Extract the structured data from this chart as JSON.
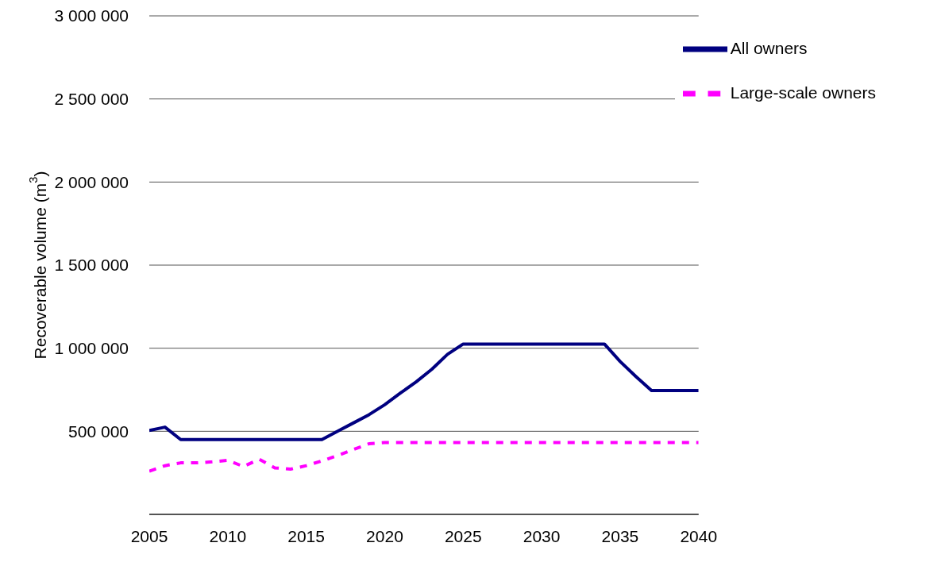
{
  "chart_data": {
    "type": "line",
    "ylabel": "Recoverable volume (m$^{3}$)",
    "x": [
      2005,
      2006,
      2007,
      2008,
      2009,
      2010,
      2011,
      2012,
      2013,
      2014,
      2015,
      2016,
      2017,
      2018,
      2019,
      2020,
      2021,
      2022,
      2023,
      2024,
      2025,
      2026,
      2027,
      2028,
      2029,
      2030,
      2031,
      2032,
      2033,
      2034,
      2035,
      2036,
      2037,
      2038,
      2039,
      2040
    ],
    "series": [
      {
        "name": "All owners",
        "color": "#000080",
        "line_style": "solid",
        "values": [
          505000,
          525000,
          450000,
          450000,
          450000,
          450000,
          450000,
          450000,
          450000,
          450000,
          450000,
          450000,
          500000,
          550000,
          600000,
          660000,
          730000,
          797000,
          873000,
          963000,
          1025000,
          1025000,
          1025000,
          1025000,
          1025000,
          1025000,
          1025000,
          1025000,
          1025000,
          1025000,
          920000,
          830000,
          745000,
          745000,
          745000,
          745000
        ]
      },
      {
        "name": "Large-scale owners",
        "color": "#ff00ff",
        "line_style": "dashed",
        "values": [
          260000,
          293000,
          310000,
          310000,
          316000,
          325000,
          288000,
          332000,
          280000,
          272000,
          293000,
          322000,
          354000,
          390000,
          425000,
          432000,
          432000,
          432000,
          432000,
          432000,
          432000,
          432000,
          432000,
          432000,
          432000,
          432000,
          432000,
          432000,
          432000,
          432000,
          432000,
          432000,
          432000,
          432000,
          432000,
          432000
        ]
      }
    ],
    "xlim": [
      2005,
      2040
    ],
    "xticks": [
      2005,
      2010,
      2015,
      2020,
      2025,
      2030,
      2035,
      2040
    ],
    "ylim": [
      0,
      3000000
    ],
    "yticks": [
      {
        "value": 0,
        "label": null
      },
      {
        "value": 500000,
        "label": "500 000"
      },
      {
        "value": 1000000,
        "label": "1 000 000"
      },
      {
        "value": 1500000,
        "label": "1 500 000"
      },
      {
        "value": 2000000,
        "label": "2 000 000"
      },
      {
        "value": 2500000,
        "label": "2 500 000"
      },
      {
        "value": 3000000,
        "label": "3 000 000"
      }
    ],
    "grid": "y",
    "legend": "top right",
    "marker": "none"
  }
}
